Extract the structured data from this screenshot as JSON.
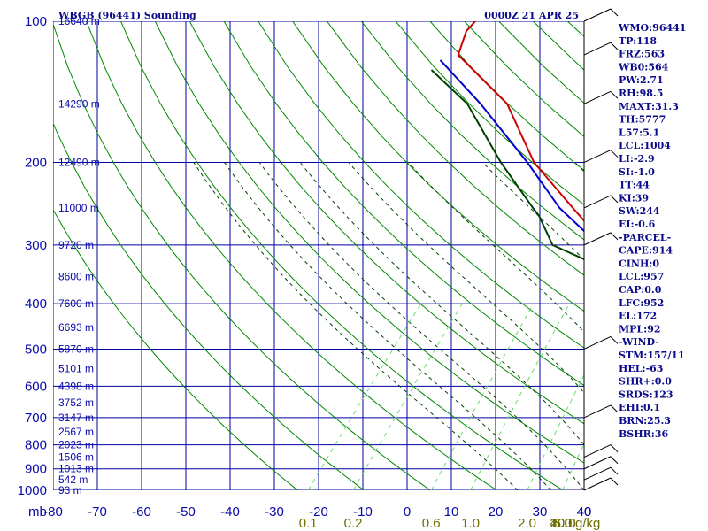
{
  "header": {
    "station": "WBGB (96441) Sounding",
    "time": "0000Z 21 APR 25"
  },
  "colors": {
    "grid": "#0000a0",
    "dry_adiabat": "#008800",
    "moist_adiabat": "#004000",
    "mixing_ratio": "#66dd66",
    "temperature": "#cc0000",
    "dewpoint": "#004000",
    "parcel": "#0000cc",
    "index_text": "#0a0a8a"
  },
  "chart_data": {
    "type": "line",
    "title": "WBGB (96441) Sounding",
    "subtitle": "0000Z 21 APR 25",
    "xlabel": "",
    "ylabel": "mb",
    "x_unit_label": "mb",
    "mixing_unit_label": "g/kg",
    "xlim": [
      -80,
      0
    ],
    "ylim": [
      1000,
      100
    ],
    "log_pressure_axis": true,
    "grid": true,
    "temperature_ticks": [
      "-80",
      "-70",
      "-60",
      "-50",
      "-40",
      "-30",
      "-20",
      "-10",
      "0",
      "10",
      "20",
      "30",
      "40",
      "0"
    ],
    "pressure_levels": [
      100,
      200,
      300,
      400,
      500,
      600,
      700,
      800,
      900,
      1000
    ],
    "pressure_labels": [
      "100",
      "200",
      "300",
      "400",
      "500",
      "600",
      "700",
      "800",
      "900",
      "1000"
    ],
    "height_labels": [
      {
        "p": 100,
        "text": "16640 m"
      },
      {
        "p": 150,
        "text": "14290 m"
      },
      {
        "p": 200,
        "text": "12490 m"
      },
      {
        "p": 250,
        "text": "11000 m"
      },
      {
        "p": 300,
        "text": "9720 m"
      },
      {
        "p": 350,
        "text": "8600 m"
      },
      {
        "p": 400,
        "text": "7600 m"
      },
      {
        "p": 450,
        "text": "6693 m"
      },
      {
        "p": 500,
        "text": "5870 m"
      },
      {
        "p": 550,
        "text": "5101 m"
      },
      {
        "p": 600,
        "text": "4398 m"
      },
      {
        "p": 650,
        "text": "3752 m"
      },
      {
        "p": 700,
        "text": "3147 m"
      },
      {
        "p": 750,
        "text": "2567 m"
      },
      {
        "p": 800,
        "text": "2023 m"
      },
      {
        "p": 850,
        "text": "1506 m"
      },
      {
        "p": 900,
        "text": "1013 m"
      },
      {
        "p": 950,
        "text": "542 m"
      },
      {
        "p": 1000,
        "text": "93 m"
      }
    ],
    "mixing_ratio_labels": [
      "0.1",
      "0.2",
      "0.6",
      "1.0",
      "2.0",
      "3.0",
      "5.0",
      "10.0",
      "20.0",
      "40.0"
    ],
    "series": [
      {
        "name": "Temperature",
        "points": [
          {
            "p": 100,
            "t": -80
          },
          {
            "p": 105,
            "t": -80
          },
          {
            "p": 118,
            "t": -78
          },
          {
            "p": 150,
            "t": -64
          },
          {
            "p": 200,
            "t": -52
          },
          {
            "p": 250,
            "t": -40
          },
          {
            "p": 300,
            "t": -30
          },
          {
            "p": 340,
            "t": -21
          },
          {
            "p": 350,
            "t": -19
          },
          {
            "p": 400,
            "t": -12
          },
          {
            "p": 500,
            "t": -4
          },
          {
            "p": 600,
            "t": 3
          },
          {
            "p": 700,
            "t": 8
          },
          {
            "p": 800,
            "t": 14
          },
          {
            "p": 850,
            "t": 17
          },
          {
            "p": 900,
            "t": 20
          },
          {
            "p": 950,
            "t": 22
          },
          {
            "p": 1000,
            "t": 24
          }
        ]
      },
      {
        "name": "Dewpoint",
        "points": [
          {
            "p": 127,
            "t": -80
          },
          {
            "p": 150,
            "t": -70
          },
          {
            "p": 200,
            "t": -57
          },
          {
            "p": 250,
            "t": -46
          },
          {
            "p": 260,
            "t": -44
          },
          {
            "p": 300,
            "t": -38
          },
          {
            "p": 340,
            "t": -26
          },
          {
            "p": 350,
            "t": -20
          },
          {
            "p": 400,
            "t": -13
          },
          {
            "p": 500,
            "t": -5
          },
          {
            "p": 600,
            "t": 2
          },
          {
            "p": 700,
            "t": 7
          },
          {
            "p": 800,
            "t": 12
          },
          {
            "p": 850,
            "t": 16
          },
          {
            "p": 900,
            "t": 19
          },
          {
            "p": 950,
            "t": 21
          },
          {
            "p": 1000,
            "t": 23
          }
        ]
      },
      {
        "name": "Parcel",
        "points": [
          {
            "p": 121,
            "t": -80
          },
          {
            "p": 150,
            "t": -68
          },
          {
            "p": 200,
            "t": -53
          },
          {
            "p": 250,
            "t": -42
          },
          {
            "p": 300,
            "t": -31
          },
          {
            "p": 350,
            "t": -21
          },
          {
            "p": 400,
            "t": -13
          },
          {
            "p": 500,
            "t": -3
          },
          {
            "p": 600,
            "t": 5
          },
          {
            "p": 700,
            "t": 11
          },
          {
            "p": 800,
            "t": 16
          },
          {
            "p": 900,
            "t": 21
          },
          {
            "p": 957,
            "t": 23
          },
          {
            "p": 1000,
            "t": 26
          }
        ]
      }
    ],
    "wind_barbs": [
      {
        "p": 100
      },
      {
        "p": 118
      },
      {
        "p": 150
      },
      {
        "p": 200
      },
      {
        "p": 250
      },
      {
        "p": 300
      },
      {
        "p": 500
      },
      {
        "p": 700
      },
      {
        "p": 850
      },
      {
        "p": 900
      },
      {
        "p": 950
      },
      {
        "p": 1000
      }
    ]
  },
  "indices": [
    "WMO:96441",
    "TP:118",
    "FRZ:563",
    "WB0:564",
    "PW:2.71",
    "RH:98.5",
    "MAXT:31.3",
    "TH:5777",
    "L57:5.1",
    "LCL:1004",
    "LI:-2.9",
    "SI:-1.0",
    "TT:44",
    "KI:39",
    "SW:244",
    "EI:-0.6",
    "-PARCEL-",
    "CAPE:914",
    "CINH:0",
    "LCL:957",
    "CAP:0.0",
    "LFC:952",
    "EL:172",
    "MPL:92",
    "-WIND-",
    "STM:157/11",
    "HEL:-63",
    "SHR+:0.0",
    "SRDS:123",
    "EHI:0.1",
    "BRN:25.3",
    "BSHR:36"
  ]
}
